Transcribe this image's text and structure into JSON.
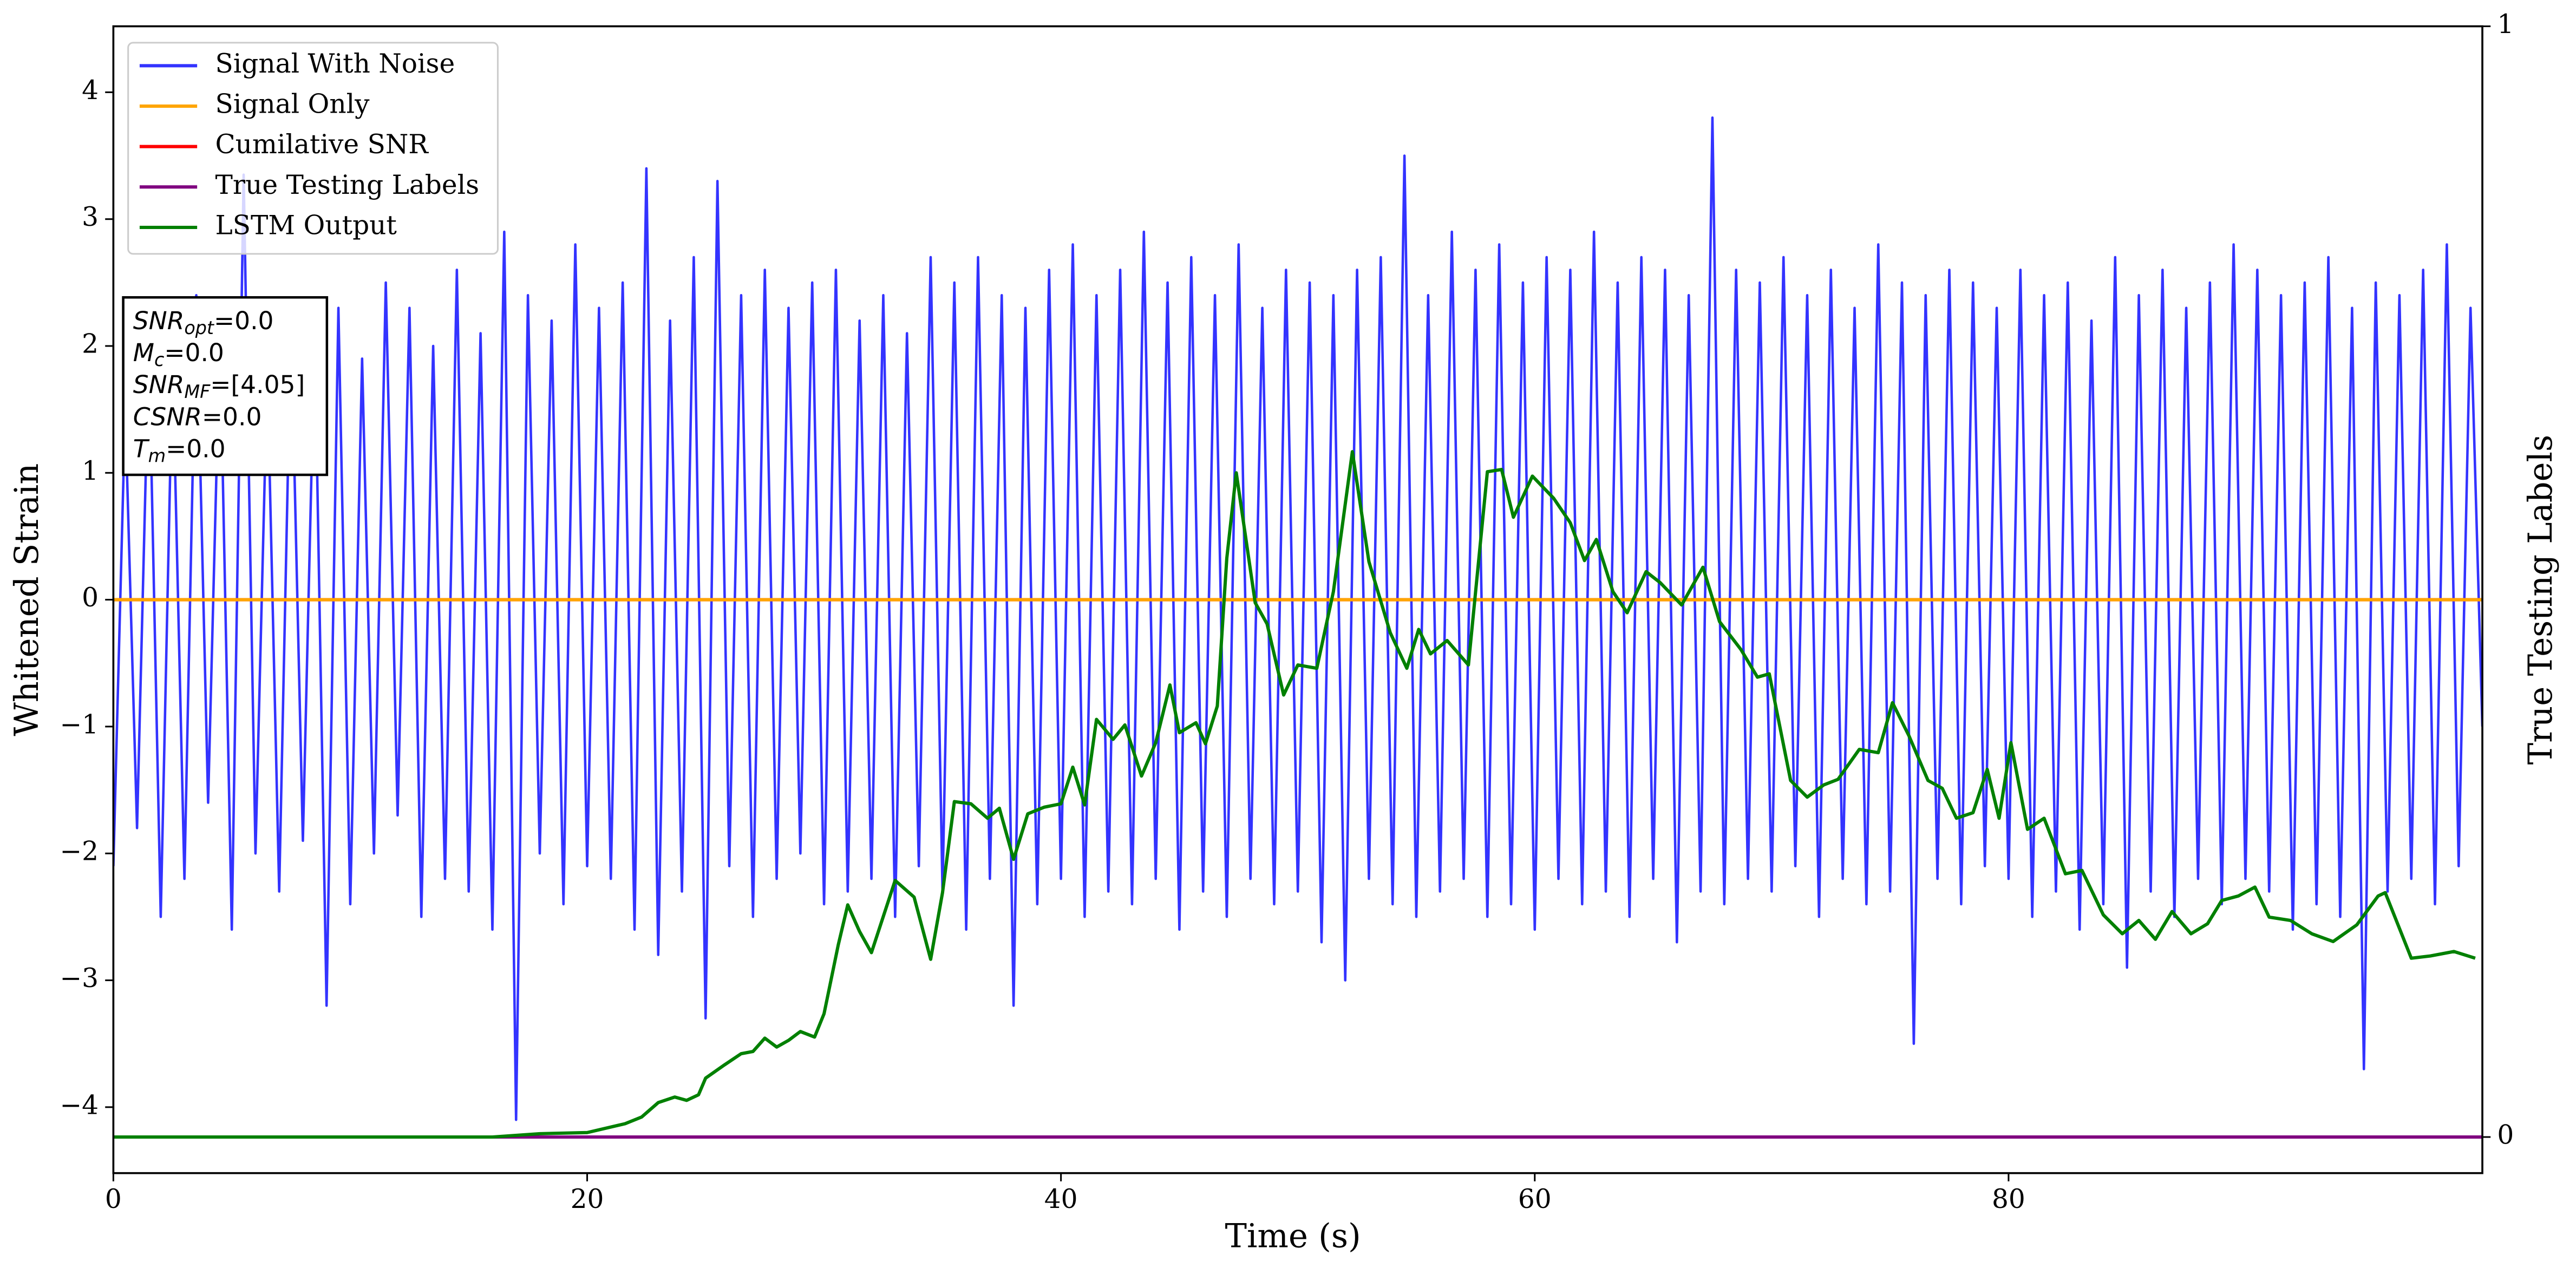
{
  "chart_data": {
    "type": "line",
    "xlabel": "Time (s)",
    "ylabel": "Whitened Strain",
    "y2label": "True Testing Labels",
    "xlim": [
      0,
      100
    ],
    "ylim": [
      -4.52,
      4.52
    ],
    "y2lim": [
      -0.0325,
      1
    ],
    "xticks": [
      0,
      20,
      40,
      60,
      80
    ],
    "yticks": [
      {
        "value": -4,
        "label": "−4"
      },
      {
        "value": -3,
        "label": "−3"
      },
      {
        "value": -2,
        "label": "−2"
      },
      {
        "value": -1,
        "label": "−1"
      },
      0,
      1,
      2,
      3,
      4
    ],
    "y2ticks": [
      0,
      1
    ],
    "grid": false,
    "legend": "upper left",
    "annotation": [
      {
        "main": "SNR",
        "sub": "opt",
        "rest": "=0.0"
      },
      {
        "main": "M",
        "sub": "c",
        "rest": "=0.0"
      },
      {
        "main": "SNR",
        "sub": "MF",
        "rest": "=[4.05]"
      },
      {
        "main": "CSNR",
        "rest": "=0.0"
      },
      {
        "main": "T",
        "sub": "m",
        "rest": "=0.0"
      }
    ],
    "series": [
      {
        "name": "Signal With Noise",
        "color": "#3333ff",
        "x": [
          0,
          0.5,
          1,
          1.5,
          2,
          2.5,
          3,
          3.5,
          4,
          4.5,
          5,
          5.5,
          6,
          6.5,
          7,
          7.5,
          8,
          8.5,
          9,
          9.5,
          10,
          10.5,
          11,
          11.5,
          12,
          12.5,
          13,
          13.5,
          14,
          14.5,
          15,
          15.5,
          16,
          16.5,
          17,
          17.5,
          18,
          18.5,
          19,
          19.5,
          20,
          20.5,
          21,
          21.5,
          22,
          22.5,
          23,
          23.5,
          24,
          24.5,
          25,
          25.5,
          26,
          26.5,
          27,
          27.5,
          28,
          28.5,
          29,
          29.5,
          30,
          30.5,
          31,
          31.5,
          32,
          32.5,
          33,
          33.5,
          34,
          34.5,
          35,
          35.5,
          36,
          36.5,
          37,
          37.5,
          38,
          38.5,
          39,
          39.5,
          40,
          40.5,
          41,
          41.5,
          42,
          42.5,
          43,
          43.5,
          44,
          44.5,
          45,
          45.5,
          46,
          46.5,
          47,
          47.5,
          48,
          48.5,
          49,
          49.5,
          50,
          50.5,
          51,
          51.5,
          52,
          52.5,
          53,
          53.5,
          54,
          54.5,
          55,
          55.5,
          56,
          56.5,
          57,
          57.5,
          58,
          58.5,
          59,
          59.5,
          60,
          60.5,
          61,
          61.5,
          62,
          62.5,
          63,
          63.5,
          64,
          64.5,
          65,
          65.5,
          66,
          66.5,
          67,
          67.5,
          68,
          68.5,
          69,
          69.5,
          70,
          70.5,
          71,
          71.5,
          72,
          72.5,
          73,
          73.5,
          74,
          74.5,
          75,
          75.5,
          76,
          76.5,
          77,
          77.5,
          78,
          78.5,
          79,
          79.5,
          80,
          80.5,
          81,
          81.5,
          82,
          82.5,
          83,
          83.5,
          84,
          84.5,
          85,
          85.5,
          86,
          86.5,
          87,
          87.5,
          88,
          88.5,
          89,
          89.5,
          90,
          90.5,
          91,
          91.5,
          92,
          92.5,
          93,
          93.5,
          94,
          94.5,
          95,
          95.5,
          96,
          96.5,
          97,
          97.5,
          98,
          98.5,
          99,
          99.5,
          100
        ],
        "values": [
          -2.1,
          1.5,
          -1.8,
          2.0,
          -2.5,
          1.9,
          -2.2,
          2.4,
          -1.6,
          2.1,
          -2.6,
          3.35,
          -2.0,
          1.8,
          -2.3,
          2.2,
          -1.9,
          2.1,
          -3.2,
          2.3,
          -2.4,
          1.9,
          -2.0,
          2.5,
          -1.7,
          2.3,
          -2.5,
          2.0,
          -2.2,
          2.6,
          -2.3,
          2.1,
          -2.6,
          2.9,
          -4.1,
          2.4,
          -2.0,
          2.2,
          -2.4,
          2.8,
          -2.1,
          2.3,
          -2.2,
          2.5,
          -2.6,
          3.4,
          -2.8,
          2.2,
          -2.3,
          2.7,
          -3.3,
          3.3,
          -2.1,
          2.4,
          -2.5,
          2.6,
          -2.2,
          2.3,
          -2.0,
          2.5,
          -2.4,
          2.6,
          -2.3,
          2.2,
          -2.2,
          2.4,
          -2.5,
          2.1,
          -2.1,
          2.7,
          -2.3,
          2.5,
          -2.6,
          2.7,
          -2.2,
          2.4,
          -3.2,
          2.3,
          -2.4,
          2.6,
          -2.2,
          2.8,
          -2.5,
          2.4,
          -2.3,
          2.6,
          -2.4,
          2.9,
          -2.2,
          2.5,
          -2.6,
          2.7,
          -2.3,
          2.4,
          -2.5,
          2.8,
          -2.2,
          2.3,
          -2.4,
          2.6,
          -2.3,
          2.5,
          -2.7,
          2.4,
          -3.0,
          2.6,
          -2.2,
          2.7,
          -2.4,
          3.5,
          -2.5,
          2.4,
          -2.3,
          2.9,
          -2.2,
          2.6,
          -2.5,
          2.8,
          -2.4,
          2.5,
          -2.6,
          2.7,
          -2.2,
          2.6,
          -2.4,
          2.9,
          -2.3,
          2.5,
          -2.5,
          2.7,
          -2.2,
          2.6,
          -2.7,
          2.4,
          -2.3,
          3.8,
          -2.4,
          2.6,
          -2.2,
          2.5,
          -2.3,
          2.7,
          -2.1,
          2.4,
          -2.5,
          2.6,
          -2.2,
          2.3,
          -2.4,
          2.8,
          -2.3,
          2.5,
          -3.5,
          2.4,
          -2.2,
          2.6,
          -2.4,
          2.5,
          -2.1,
          2.3,
          -2.2,
          2.6,
          -2.5,
          2.4,
          -2.3,
          2.5,
          -2.6,
          2.2,
          -2.4,
          2.7,
          -2.9,
          2.4,
          -2.3,
          2.6,
          -2.5,
          2.3,
          -2.2,
          2.5,
          -2.4,
          2.8,
          -2.2,
          2.6,
          -2.3,
          2.4,
          -2.6,
          2.5,
          -2.4,
          2.7,
          -2.5,
          2.3,
          -3.7,
          2.5,
          -2.3,
          2.4,
          -2.2,
          2.6,
          -2.4,
          2.8,
          -2.1,
          2.3,
          -1.0
        ]
      },
      {
        "name": "Signal Only",
        "color": "orange",
        "x": [
          0,
          100
        ],
        "values": [
          0,
          0
        ]
      },
      {
        "name": "Cumilative SNR",
        "color": "red",
        "x": [
          0,
          100
        ],
        "values": [
          0,
          0
        ]
      },
      {
        "name": "True Testing Labels",
        "color": "purple",
        "axis": "y2",
        "x": [
          0,
          100
        ],
        "values": [
          0,
          0
        ]
      },
      {
        "name": "LSTM Output",
        "color": "green",
        "axis": "y2",
        "x": [
          0,
          16,
          18,
          20,
          21.6,
          22.3,
          23,
          23.7,
          24.2,
          24.7,
          25,
          25.8,
          26.5,
          27,
          27.5,
          28,
          28.5,
          29,
          29.6,
          30,
          30.6,
          31,
          31.5,
          32,
          33,
          33.8,
          34.5,
          35,
          35.5,
          36.2,
          36.9,
          37.4,
          38,
          38.6,
          39.3,
          40,
          40.5,
          41,
          41.5,
          42.2,
          42.7,
          43.4,
          44,
          44.6,
          45,
          45.7,
          46.1,
          46.6,
          47,
          47.4,
          48.2,
          48.7,
          49.4,
          50,
          50.8,
          51.5,
          52.3,
          53,
          53.9,
          54.6,
          55.1,
          55.6,
          56.3,
          57.2,
          58,
          58.6,
          59.1,
          59.9,
          60.8,
          61.5,
          62.1,
          62.6,
          63.3,
          63.9,
          64.7,
          65.3,
          66.2,
          67.1,
          67.8,
          68.7,
          69.4,
          69.9,
          70.8,
          71.5,
          72.2,
          72.8,
          73.7,
          74.5,
          75.1,
          75.8,
          76.6,
          77.2,
          77.8,
          78.5,
          79.1,
          79.6,
          80.1,
          80.8,
          81.5,
          82.4,
          83.1,
          84,
          84.8,
          85.5,
          86.2,
          86.9,
          87.7,
          88.4,
          89,
          89.7,
          90.4,
          91,
          91.9,
          92.8,
          93.7,
          94.7,
          95.6,
          95.9,
          97,
          97.8,
          98.8,
          99.7
        ],
        "values": [
          0,
          0,
          0.003,
          0.004,
          0.012,
          0.018,
          0.031,
          0.036,
          0.033,
          0.038,
          0.053,
          0.065,
          0.075,
          0.077,
          0.089,
          0.081,
          0.087,
          0.095,
          0.09,
          0.111,
          0.173,
          0.209,
          0.185,
          0.166,
          0.231,
          0.216,
          0.16,
          0.22,
          0.302,
          0.3,
          0.287,
          0.296,
          0.25,
          0.291,
          0.297,
          0.3,
          0.333,
          0.299,
          0.376,
          0.358,
          0.371,
          0.325,
          0.355,
          0.407,
          0.364,
          0.373,
          0.354,
          0.388,
          0.521,
          0.598,
          0.481,
          0.462,
          0.398,
          0.425,
          0.422,
          0.491,
          0.617,
          0.518,
          0.454,
          0.422,
          0.457,
          0.435,
          0.447,
          0.425,
          0.599,
          0.601,
          0.558,
          0.595,
          0.575,
          0.553,
          0.519,
          0.538,
          0.491,
          0.472,
          0.509,
          0.499,
          0.479,
          0.513,
          0.464,
          0.439,
          0.414,
          0.417,
          0.321,
          0.306,
          0.317,
          0.322,
          0.349,
          0.346,
          0.391,
          0.361,
          0.321,
          0.314,
          0.287,
          0.292,
          0.331,
          0.287,
          0.355,
          0.277,
          0.287,
          0.237,
          0.24,
          0.2,
          0.183,
          0.195,
          0.178,
          0.203,
          0.183,
          0.192,
          0.213,
          0.217,
          0.225,
          0.198,
          0.195,
          0.183,
          0.176,
          0.191,
          0.217,
          0.22,
          0.161,
          0.163,
          0.167,
          0.161
        ]
      }
    ]
  }
}
